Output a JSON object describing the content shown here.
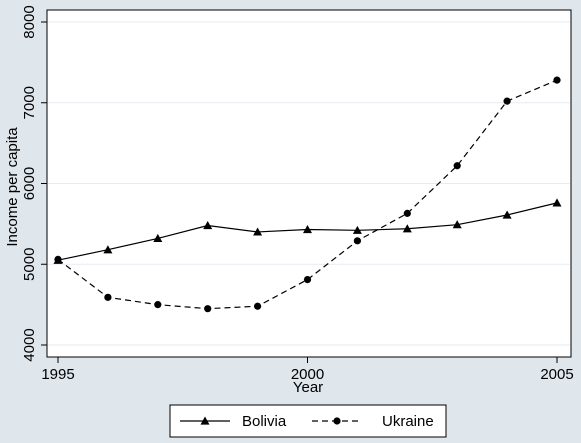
{
  "chart_data": {
    "type": "line",
    "xlabel": "Year",
    "ylabel": "Income per capita",
    "xlim": [
      1995,
      2005
    ],
    "ylim": [
      4000,
      8000
    ],
    "x_ticks": [
      "1995",
      "2000",
      "2005"
    ],
    "y_ticks": [
      "4000",
      "5000",
      "6000",
      "7000",
      "8000"
    ],
    "grid": "horizontal",
    "legend_position": "bottom",
    "x": [
      1995,
      1996,
      1997,
      1998,
      1999,
      2000,
      2001,
      2002,
      2003,
      2004,
      2005
    ],
    "series": [
      {
        "name": "Bolivia",
        "marker": "triangle",
        "line": "solid",
        "color": "#000000",
        "values": [
          5050,
          5180,
          5320,
          5480,
          5400,
          5430,
          5420,
          5440,
          5490,
          5610,
          5760
        ]
      },
      {
        "name": "Ukraine",
        "marker": "circle",
        "line": "dashed",
        "color": "#000000",
        "values": [
          5060,
          4590,
          4500,
          4450,
          4480,
          4810,
          5290,
          5630,
          6220,
          7020,
          7280
        ]
      }
    ]
  },
  "colors": {
    "background": "#dfe6ec",
    "plot_area": "#ffffff",
    "grid": "#e6ebf0"
  }
}
